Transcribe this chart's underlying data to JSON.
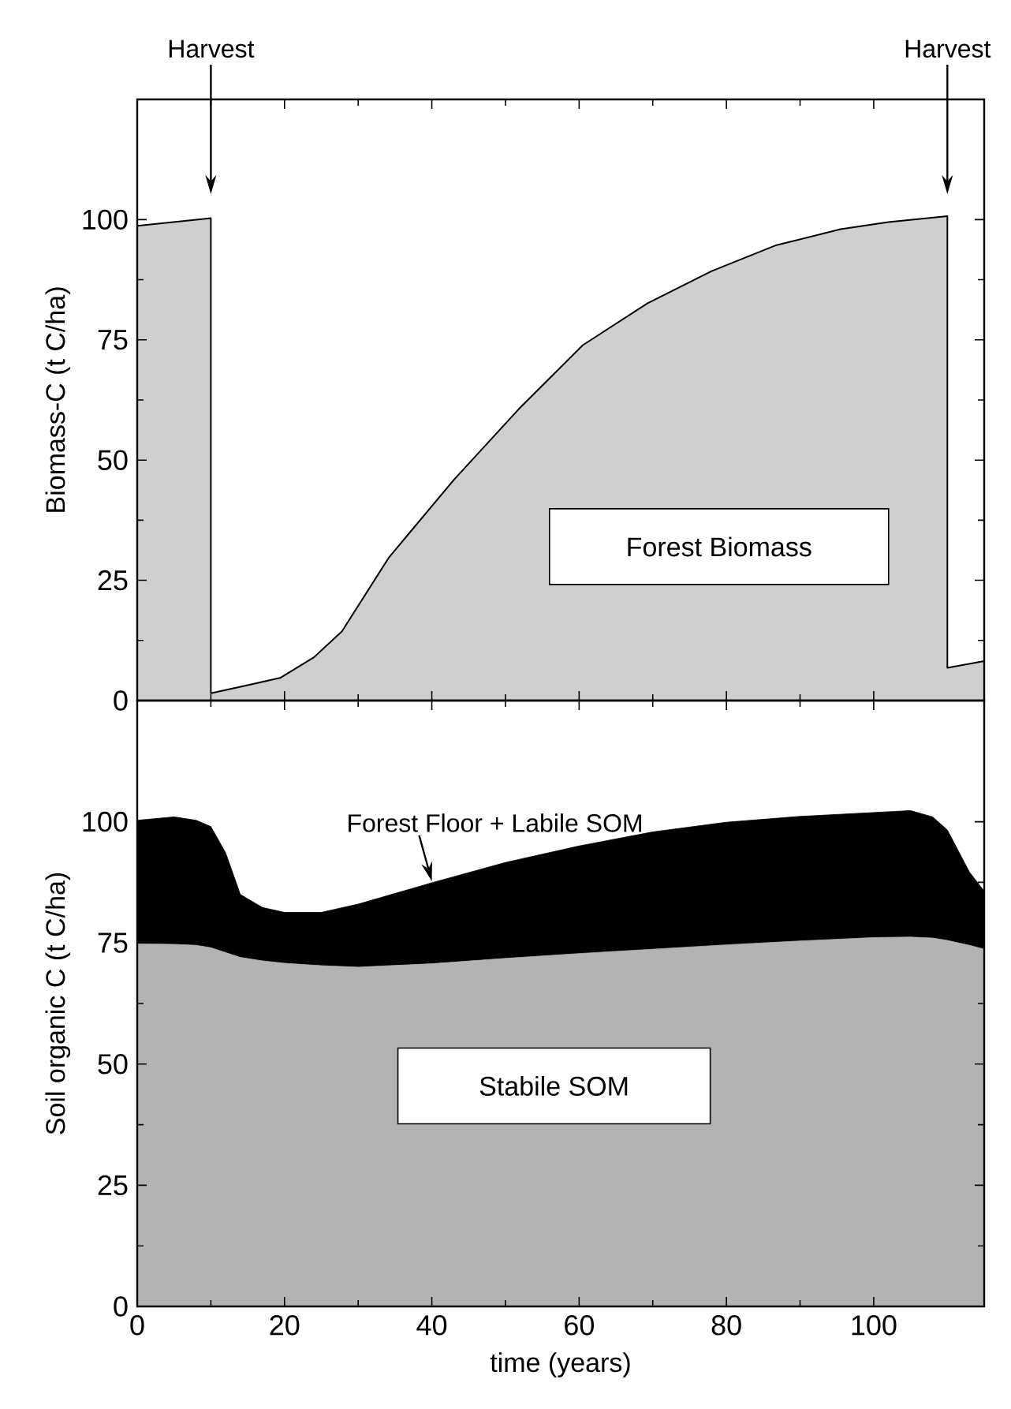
{
  "chart_data": [
    {
      "type": "area",
      "ylabel": "Biomass-C (t C/ha)",
      "xlim": [
        0,
        115
      ],
      "xticks": [
        0,
        20,
        40,
        60,
        80,
        100
      ],
      "ylim": [
        0,
        125
      ],
      "yticks": [
        0,
        25,
        50,
        75,
        100
      ],
      "tick_labels": "y",
      "series": [
        {
          "name": "Forest Biomass",
          "color": "#cfcfcf",
          "x": [
            0,
            5,
            10,
            10,
            15,
            19.4,
            24,
            27.8,
            34.2,
            43,
            51.8,
            60.5,
            69.3,
            78,
            86.8,
            95.5,
            102,
            110,
            110,
            115
          ],
          "values": [
            98.7,
            99.5,
            100.3,
            1.5,
            3.2,
            4.7,
            9,
            14.4,
            29.8,
            45.9,
            60.6,
            73.9,
            82.6,
            89.3,
            94.7,
            98,
            99.5,
            100.7,
            6.8,
            8.2
          ]
        }
      ],
      "annotations": [
        "Harvest",
        "Harvest"
      ]
    },
    {
      "type": "area",
      "stacked": true,
      "xlabel": "time (years)",
      "ylabel": "Soil organic C (t C/ha)",
      "xlim": [
        0,
        115
      ],
      "xticks": [
        0,
        20,
        40,
        60,
        80,
        100
      ],
      "ylim": [
        0,
        125
      ],
      "yticks": [
        0,
        25,
        50,
        75,
        100
      ],
      "x": [
        0,
        5,
        8,
        10,
        12,
        14,
        17,
        20,
        25,
        30,
        40,
        50,
        60,
        70,
        80,
        90,
        100,
        105,
        108,
        110,
        113,
        115
      ],
      "series": [
        {
          "name": "Stabile SOM",
          "color": "#b3b3b3",
          "values": [
            74.8,
            74.7,
            74.5,
            74,
            73,
            72,
            71.3,
            70.8,
            70.3,
            70,
            70.7,
            71.8,
            72.8,
            73.7,
            74.6,
            75.4,
            76.1,
            76.2,
            76,
            75.5,
            74.5,
            73.7
          ]
        },
        {
          "color": "#000000",
          "values": [
            25.5,
            26.3,
            25.8,
            25,
            20.6,
            13,
            11,
            10.5,
            11,
            13,
            16.7,
            19.8,
            22.2,
            24.2,
            25.3,
            25.7,
            25.8,
            26.1,
            25,
            22.8,
            15.1,
            12
          ]
        }
      ],
      "annotations": [
        {
          "text": "Forest Floor + Labile SOM",
          "x": 40,
          "y": 87.4
        }
      ]
    }
  ]
}
